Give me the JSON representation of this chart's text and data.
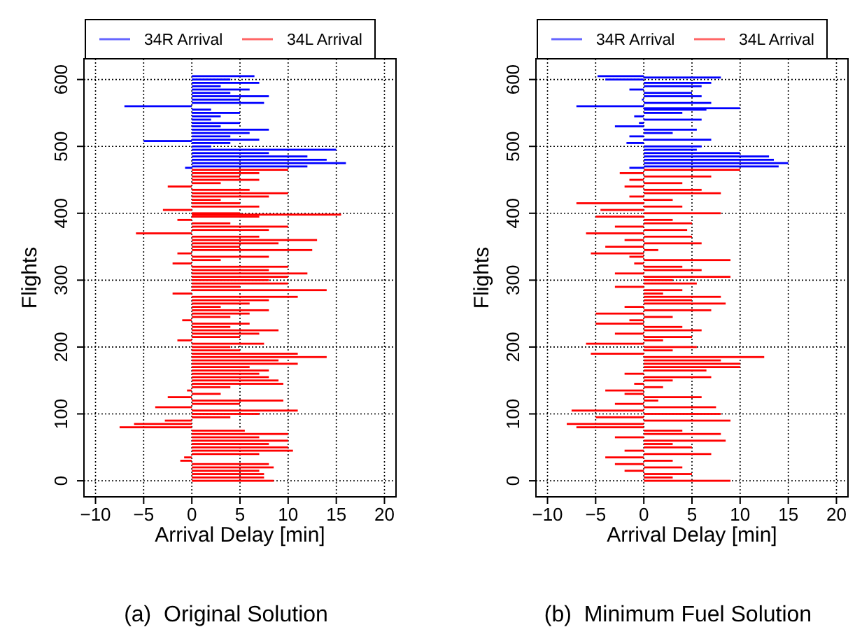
{
  "chart_data": [
    {
      "type": "bar",
      "orientation": "horizontal",
      "xlabel": "Arrival Delay [min]",
      "ylabel": "Flights",
      "xlim": [
        -11.2,
        21.2
      ],
      "xticks": [
        -10,
        -5,
        0,
        5,
        10,
        15,
        20
      ],
      "ylim": [
        -24,
        631
      ],
      "yticks": [
        0,
        100,
        200,
        300,
        400,
        500,
        600
      ],
      "grid": true,
      "legend": "top",
      "annotations": [
        "(a)  Original Solution"
      ],
      "series": [
        {
          "name": "34R Arrival",
          "color": "#0000ff",
          "x": [
            605,
            600,
            595,
            590,
            585,
            580,
            575,
            570,
            565,
            560,
            555,
            550,
            545,
            540,
            535,
            530,
            525,
            520,
            515,
            510,
            508,
            505,
            500,
            495,
            490,
            485,
            480,
            475,
            470,
            468
          ],
          "values": [
            6.5,
            4,
            7,
            3,
            6,
            4,
            8,
            5,
            7.5,
            -7,
            2,
            5,
            3,
            2,
            5,
            3,
            8,
            6,
            4,
            7,
            -5,
            4,
            2,
            15,
            8,
            12,
            14,
            16,
            12,
            -0.7
          ]
        },
        {
          "name": "34L Arrival",
          "color": "#ff0000",
          "x": [
            465,
            460,
            455,
            450,
            445,
            440,
            435,
            430,
            425,
            420,
            415,
            410,
            405,
            400,
            398,
            395,
            390,
            385,
            380,
            375,
            370,
            365,
            360,
            355,
            350,
            345,
            340,
            335,
            330,
            325,
            320,
            315,
            310,
            305,
            300,
            295,
            290,
            285,
            280,
            275,
            270,
            265,
            260,
            255,
            250,
            245,
            240,
            235,
            230,
            225,
            220,
            215,
            210,
            205,
            200,
            195,
            190,
            185,
            180,
            175,
            170,
            165,
            160,
            155,
            150,
            145,
            140,
            135,
            130,
            125,
            120,
            115,
            110,
            105,
            100,
            95,
            90,
            85,
            80,
            75,
            70,
            65,
            60,
            55,
            50,
            45,
            40,
            35,
            30,
            25,
            20,
            15,
            10,
            5,
            0
          ],
          "values": [
            10,
            7,
            5,
            7,
            3,
            -2.5,
            6,
            10,
            8,
            3,
            5,
            7,
            -3,
            5,
            15.5,
            7,
            -1.5,
            4,
            10,
            8,
            -5.8,
            7,
            13,
            9,
            5,
            12.5,
            -1.5,
            8,
            3,
            -2,
            10,
            8,
            12,
            10,
            8,
            10,
            5,
            14,
            -2,
            11,
            8,
            6,
            3,
            8,
            6,
            4,
            -1,
            6,
            4,
            9,
            7,
            5,
            -1.5,
            7.5,
            4,
            5,
            11,
            14,
            9,
            11,
            6,
            8,
            7,
            8,
            9,
            9.5,
            4,
            -0.5,
            3,
            -2.5,
            9.5,
            5,
            -3.8,
            11,
            7,
            4,
            -2.8,
            -6,
            -7.5,
            5.5,
            10,
            7,
            10,
            8,
            10,
            10.5,
            7,
            -0.8,
            -1.2,
            8,
            8.5,
            7,
            7.5,
            7.5,
            8.5
          ]
        }
      ]
    },
    {
      "type": "bar",
      "orientation": "horizontal",
      "xlabel": "Arrival Delay [min]",
      "ylabel": "Flights",
      "xlim": [
        -11.2,
        21.2
      ],
      "xticks": [
        -10,
        -5,
        0,
        5,
        10,
        15,
        20
      ],
      "ylim": [
        -24,
        631
      ],
      "yticks": [
        0,
        100,
        200,
        300,
        400,
        500,
        600
      ],
      "grid": true,
      "legend": "top",
      "annotations": [
        "(b)  Minimum Fuel Solution"
      ],
      "series": [
        {
          "name": "34R Arrival",
          "color": "#0000ff",
          "x": [
            605,
            603,
            600,
            595,
            590,
            585,
            580,
            575,
            570,
            565,
            560,
            557,
            555,
            550,
            545,
            540,
            535,
            530,
            525,
            520,
            515,
            510,
            505,
            500,
            495,
            490,
            485,
            480,
            475,
            470,
            468
          ],
          "values": [
            -4.8,
            8,
            -4,
            7,
            6,
            -1.5,
            5,
            6,
            -0.2,
            7,
            -7,
            10,
            6.5,
            4,
            -1,
            6,
            -0.5,
            -3,
            5.5,
            3,
            -1.5,
            7,
            -1.8,
            6,
            5.5,
            10,
            13,
            13.5,
            15,
            14,
            -1.5
          ]
        },
        {
          "name": "34L Arrival",
          "color": "#ff0000",
          "x": [
            465,
            460,
            455,
            450,
            445,
            440,
            435,
            430,
            425,
            420,
            415,
            410,
            405,
            400,
            395,
            390,
            385,
            380,
            375,
            370,
            365,
            360,
            355,
            350,
            345,
            340,
            335,
            330,
            325,
            320,
            315,
            310,
            305,
            300,
            295,
            290,
            285,
            280,
            275,
            270,
            265,
            260,
            255,
            250,
            245,
            240,
            235,
            230,
            225,
            220,
            215,
            210,
            205,
            200,
            195,
            190,
            185,
            180,
            175,
            170,
            165,
            160,
            155,
            150,
            145,
            140,
            135,
            130,
            125,
            120,
            115,
            110,
            105,
            100,
            95,
            90,
            85,
            80,
            75,
            70,
            65,
            60,
            55,
            50,
            45,
            40,
            35,
            30,
            25,
            20,
            15,
            10,
            5,
            0
          ],
          "values": [
            10,
            -2.5,
            7,
            -1.5,
            4,
            -2,
            6,
            8,
            -1.5,
            3,
            -7,
            4,
            -4.5,
            8,
            -5,
            3,
            5,
            -3,
            4.5,
            -6,
            5,
            -2,
            6,
            -4,
            1.5,
            -5.5,
            -1.5,
            9,
            -1,
            4,
            6,
            -3,
            9,
            3,
            5.5,
            -3,
            4,
            2,
            8,
            5,
            8.5,
            -2,
            7,
            -5,
            3,
            -1.5,
            -5,
            4,
            6,
            -3,
            5,
            2,
            -6,
            5.5,
            3,
            -5.5,
            12.5,
            8,
            10,
            10,
            6.5,
            -2,
            7,
            3,
            -1,
            2,
            -4,
            -2,
            6,
            1.5,
            -3,
            7.5,
            -7.5,
            8,
            -5,
            9,
            -8,
            -7,
            4,
            8,
            -3,
            8.5,
            3,
            5,
            -2,
            7,
            -4,
            3,
            -3,
            4,
            -2,
            5,
            3,
            9
          ]
        }
      ]
    }
  ]
}
